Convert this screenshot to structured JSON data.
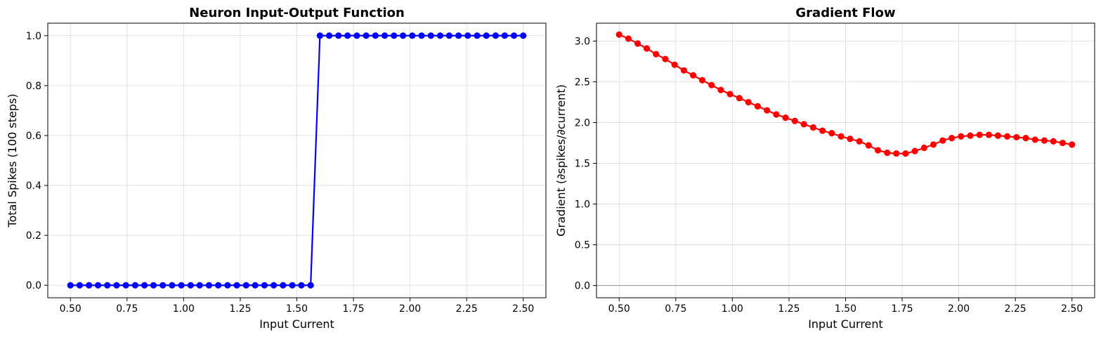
{
  "chart_data": [
    {
      "type": "line",
      "title": "Neuron Input-Output Function",
      "xlabel": "Input Current",
      "ylabel": "Total Spikes (100 steps)",
      "xlim": [
        0.4,
        2.6
      ],
      "ylim": [
        -0.05,
        1.05
      ],
      "x_ticks": [
        "0.50",
        "0.75",
        "1.00",
        "1.25",
        "1.50",
        "1.75",
        "2.00",
        "2.25",
        "2.50"
      ],
      "y_ticks": [
        "0.0",
        "0.2",
        "0.4",
        "0.6",
        "0.8",
        "1.0"
      ],
      "grid": true,
      "marker": "circle",
      "color": "#0000ff",
      "series": [
        {
          "x": [
            0.5,
            0.541,
            0.582,
            0.622,
            0.663,
            0.704,
            0.745,
            0.786,
            0.827,
            0.867,
            0.908,
            0.949,
            0.99,
            1.031,
            1.071,
            1.112,
            1.153,
            1.194,
            1.235,
            1.276,
            1.316,
            1.357,
            1.398,
            1.439,
            1.48,
            1.52,
            1.561,
            1.602,
            1.643,
            1.684,
            1.724,
            1.765,
            1.806,
            1.847,
            1.888,
            1.929,
            1.969,
            2.01,
            2.051,
            2.092,
            2.133,
            2.173,
            2.214,
            2.255,
            2.296,
            2.337,
            2.378,
            2.418,
            2.459,
            2.5
          ],
          "values": [
            0,
            0,
            0,
            0,
            0,
            0,
            0,
            0,
            0,
            0,
            0,
            0,
            0,
            0,
            0,
            0,
            0,
            0,
            0,
            0,
            0,
            0,
            0,
            0,
            0,
            0,
            0,
            1,
            1,
            1,
            1,
            1,
            1,
            1,
            1,
            1,
            1,
            1,
            1,
            1,
            1,
            1,
            1,
            1,
            1,
            1,
            1,
            1,
            1,
            1
          ]
        }
      ]
    },
    {
      "type": "line",
      "title": "Gradient Flow",
      "xlabel": "Input Current",
      "ylabel": "Gradient (∂spikes/∂current)",
      "xlim": [
        0.4,
        2.6
      ],
      "ylim": [
        -0.15,
        3.22
      ],
      "x_ticks": [
        "0.50",
        "0.75",
        "1.00",
        "1.25",
        "1.50",
        "1.75",
        "2.00",
        "2.25",
        "2.50"
      ],
      "y_ticks": [
        "0.0",
        "0.5",
        "1.0",
        "1.5",
        "2.0",
        "2.5",
        "3.0"
      ],
      "grid": true,
      "marker": "circle",
      "color": "#ff0000",
      "reference_line_y": 0,
      "series": [
        {
          "x": [
            0.5,
            0.541,
            0.582,
            0.622,
            0.663,
            0.704,
            0.745,
            0.786,
            0.827,
            0.867,
            0.908,
            0.949,
            0.99,
            1.031,
            1.071,
            1.112,
            1.153,
            1.194,
            1.235,
            1.276,
            1.316,
            1.357,
            1.398,
            1.439,
            1.48,
            1.52,
            1.561,
            1.602,
            1.643,
            1.684,
            1.724,
            1.765,
            1.806,
            1.847,
            1.888,
            1.929,
            1.969,
            2.01,
            2.051,
            2.092,
            2.133,
            2.173,
            2.214,
            2.255,
            2.296,
            2.337,
            2.378,
            2.418,
            2.459,
            2.5
          ],
          "values": [
            3.08,
            3.03,
            2.97,
            2.91,
            2.84,
            2.78,
            2.71,
            2.64,
            2.58,
            2.52,
            2.46,
            2.4,
            2.35,
            2.3,
            2.25,
            2.2,
            2.15,
            2.1,
            2.06,
            2.02,
            1.98,
            1.94,
            1.9,
            1.87,
            1.83,
            1.8,
            1.77,
            1.72,
            1.66,
            1.63,
            1.62,
            1.62,
            1.65,
            1.69,
            1.73,
            1.78,
            1.81,
            1.83,
            1.84,
            1.85,
            1.85,
            1.84,
            1.83,
            1.82,
            1.81,
            1.79,
            1.78,
            1.77,
            1.75,
            1.73
          ]
        }
      ]
    }
  ]
}
